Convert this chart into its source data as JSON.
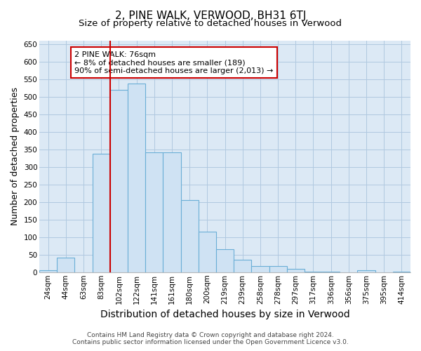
{
  "title": "2, PINE WALK, VERWOOD, BH31 6TJ",
  "subtitle": "Size of property relative to detached houses in Verwood",
  "xlabel": "Distribution of detached houses by size in Verwood",
  "ylabel": "Number of detached properties",
  "footer_line1": "Contains HM Land Registry data © Crown copyright and database right 2024.",
  "footer_line2": "Contains public sector information licensed under the Open Government Licence v3.0.",
  "bar_labels": [
    "24sqm",
    "44sqm",
    "63sqm",
    "83sqm",
    "102sqm",
    "122sqm",
    "141sqm",
    "161sqm",
    "180sqm",
    "200sqm",
    "219sqm",
    "239sqm",
    "258sqm",
    "278sqm",
    "297sqm",
    "317sqm",
    "336sqm",
    "356sqm",
    "375sqm",
    "395sqm",
    "414sqm"
  ],
  "bar_values": [
    5,
    42,
    0,
    338,
    520,
    537,
    342,
    342,
    205,
    115,
    65,
    35,
    18,
    18,
    10,
    2,
    2,
    0,
    5,
    0,
    2
  ],
  "bar_color": "#cfe2f3",
  "bar_edge_color": "#6aaed6",
  "red_line_x": 3.5,
  "annotation_text": "2 PINE WALK: 76sqm\n← 8% of detached houses are smaller (189)\n90% of semi-detached houses are larger (2,013) →",
  "annotation_box_color": "#ffffff",
  "annotation_box_edge": "#cc0000",
  "ylim": [
    0,
    660
  ],
  "yticks": [
    0,
    50,
    100,
    150,
    200,
    250,
    300,
    350,
    400,
    450,
    500,
    550,
    600,
    650
  ],
  "background_color": "#dce9f5",
  "plot_bg_color": "#dce9f5",
  "grid_color": "#b0c8e0",
  "red_line_color": "#cc0000",
  "title_fontsize": 11,
  "subtitle_fontsize": 9.5,
  "axis_label_fontsize": 9,
  "tick_fontsize": 7.5,
  "footer_fontsize": 6.5
}
